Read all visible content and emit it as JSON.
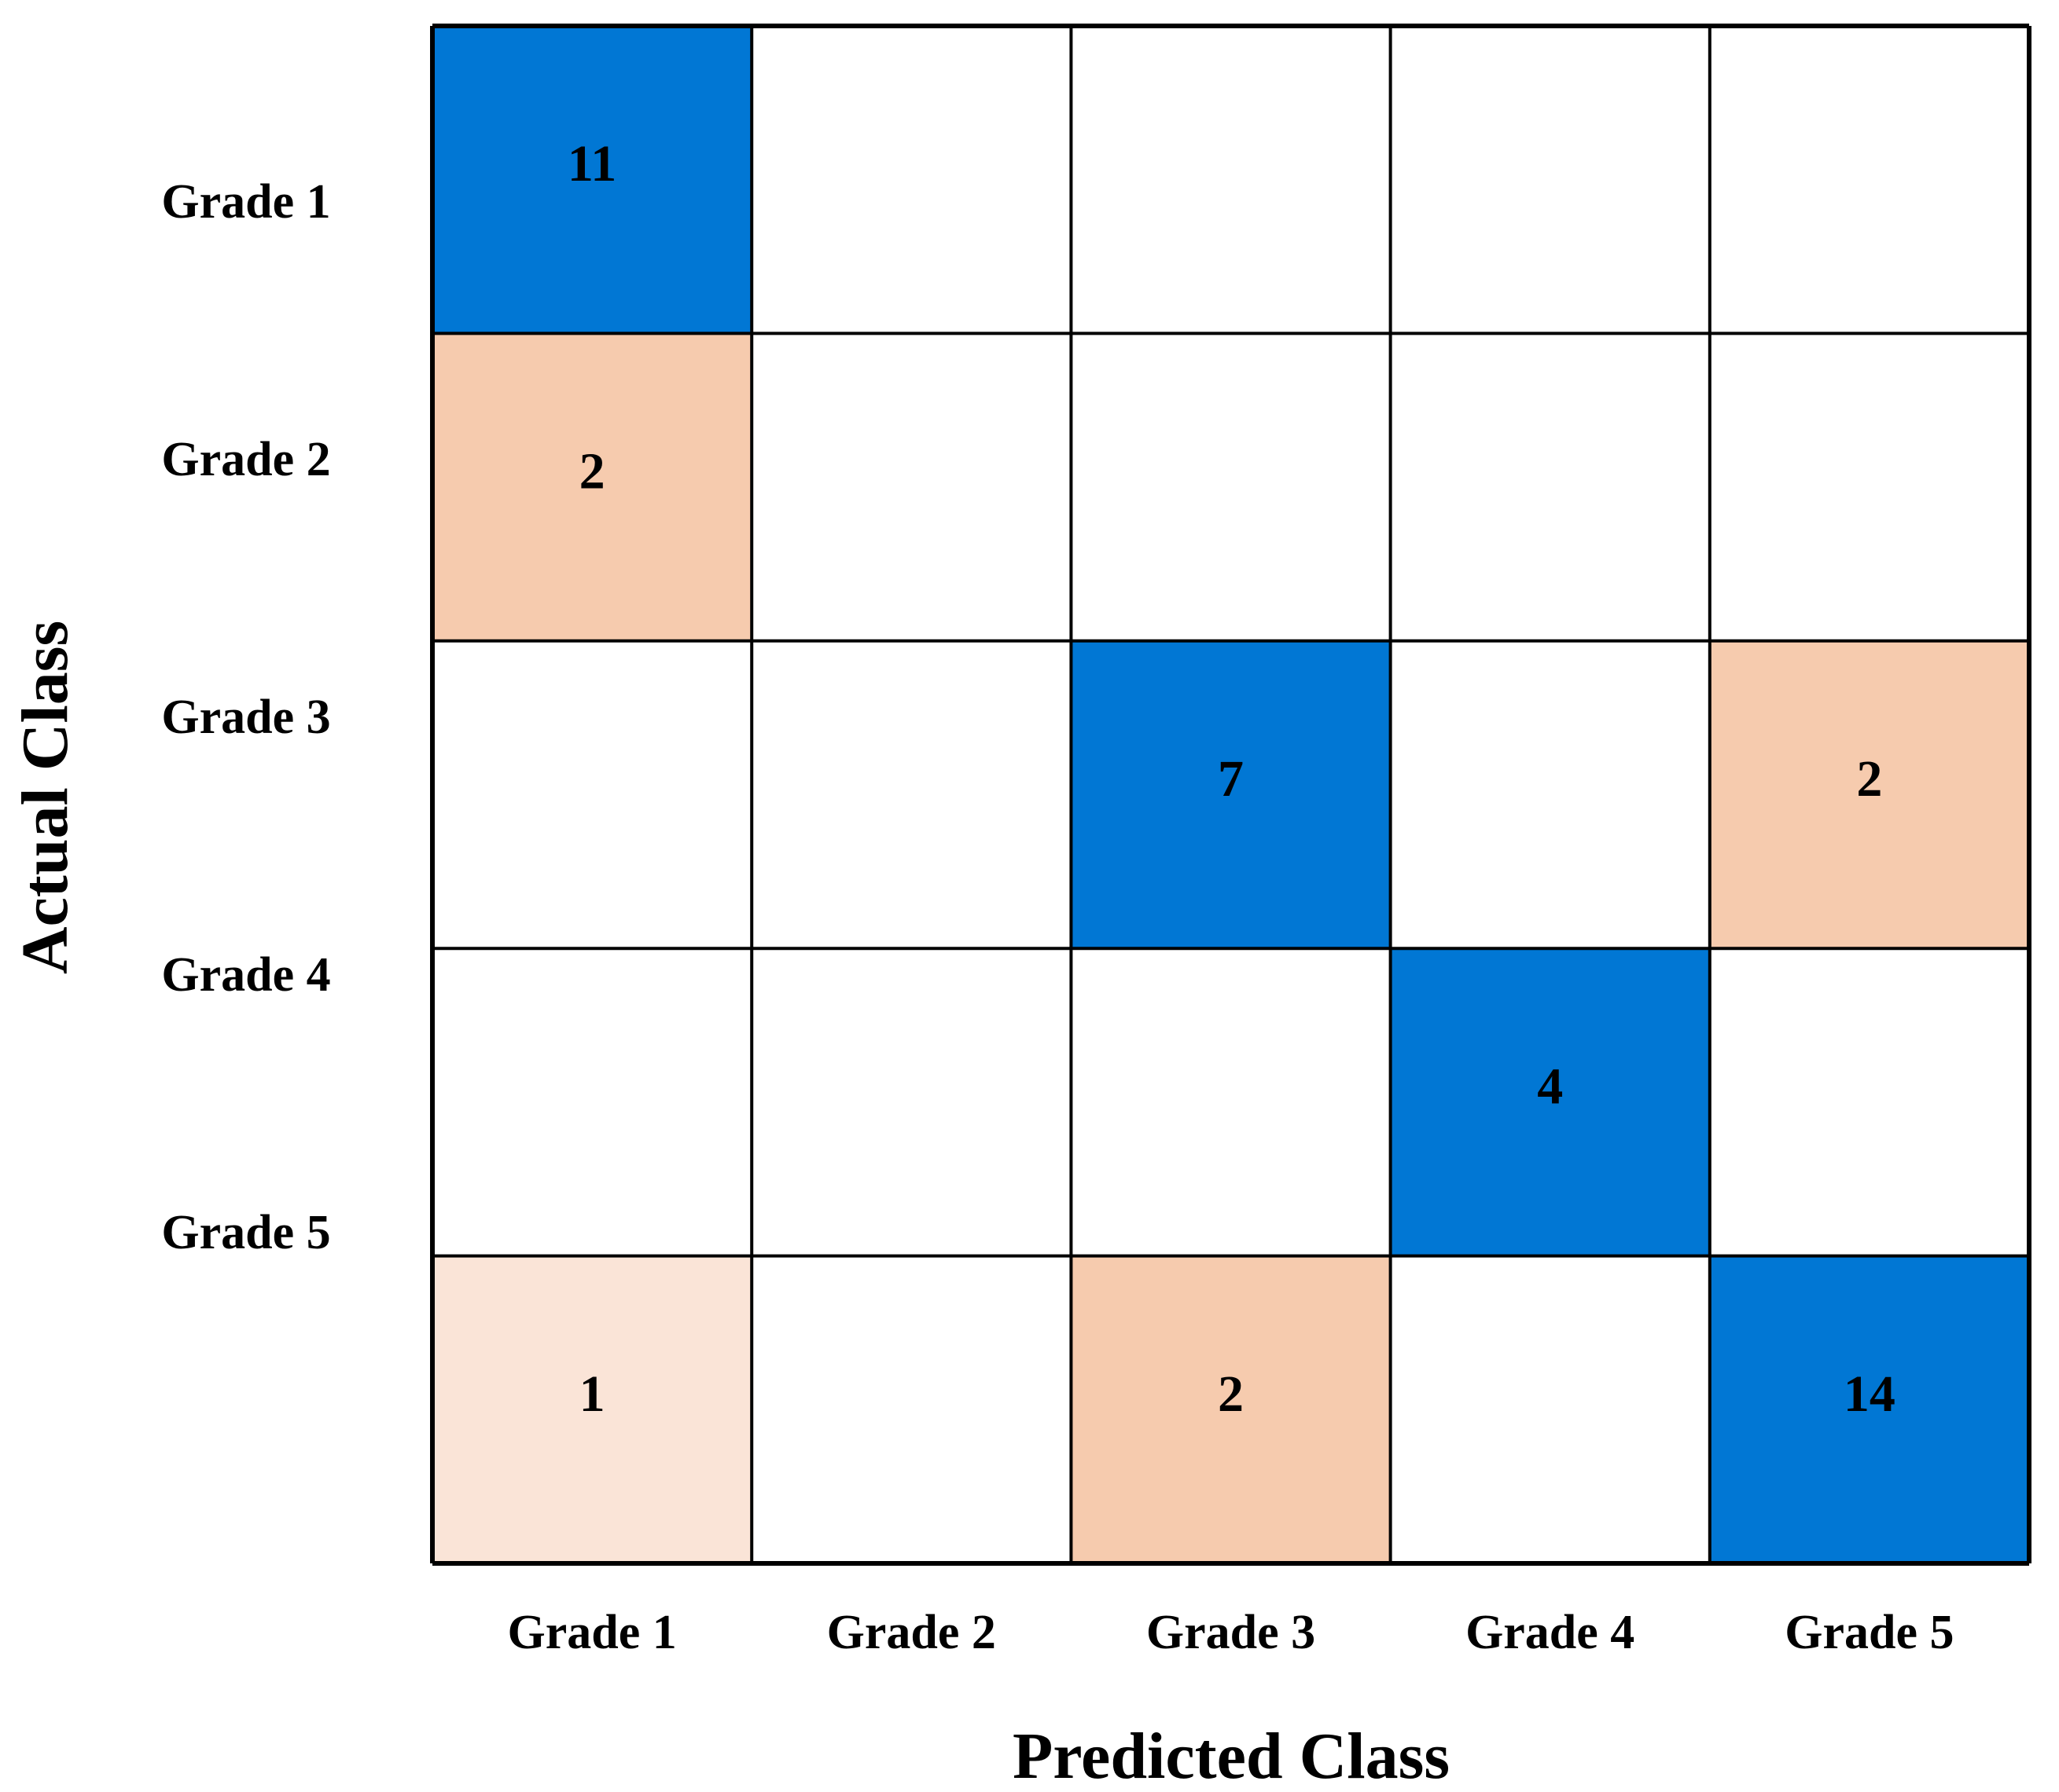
{
  "chart_data": {
    "type": "heatmap",
    "title": "",
    "xlabel": "Predicted Class",
    "ylabel": "Actual Class",
    "x_categories": [
      "Grade 1",
      "Grade 2",
      "Grade 3",
      "Grade 4",
      "Grade 5"
    ],
    "y_categories": [
      "Grade 1",
      "Grade 2",
      "Grade 3",
      "Grade 4",
      "Grade 5"
    ],
    "matrix": [
      [
        11,
        null,
        null,
        null,
        null
      ],
      [
        2,
        null,
        null,
        null,
        null
      ],
      [
        null,
        null,
        7,
        null,
        2
      ],
      [
        null,
        null,
        null,
        4,
        null
      ],
      [
        1,
        null,
        2,
        null,
        14
      ]
    ],
    "grid": true,
    "colors": {
      "diagonal": "#0177D4",
      "off_diagonal_strong": "#F6CBAE",
      "off_diagonal_light": "#FAE4D7",
      "empty": "#FFFFFF",
      "border": "#000000"
    }
  }
}
